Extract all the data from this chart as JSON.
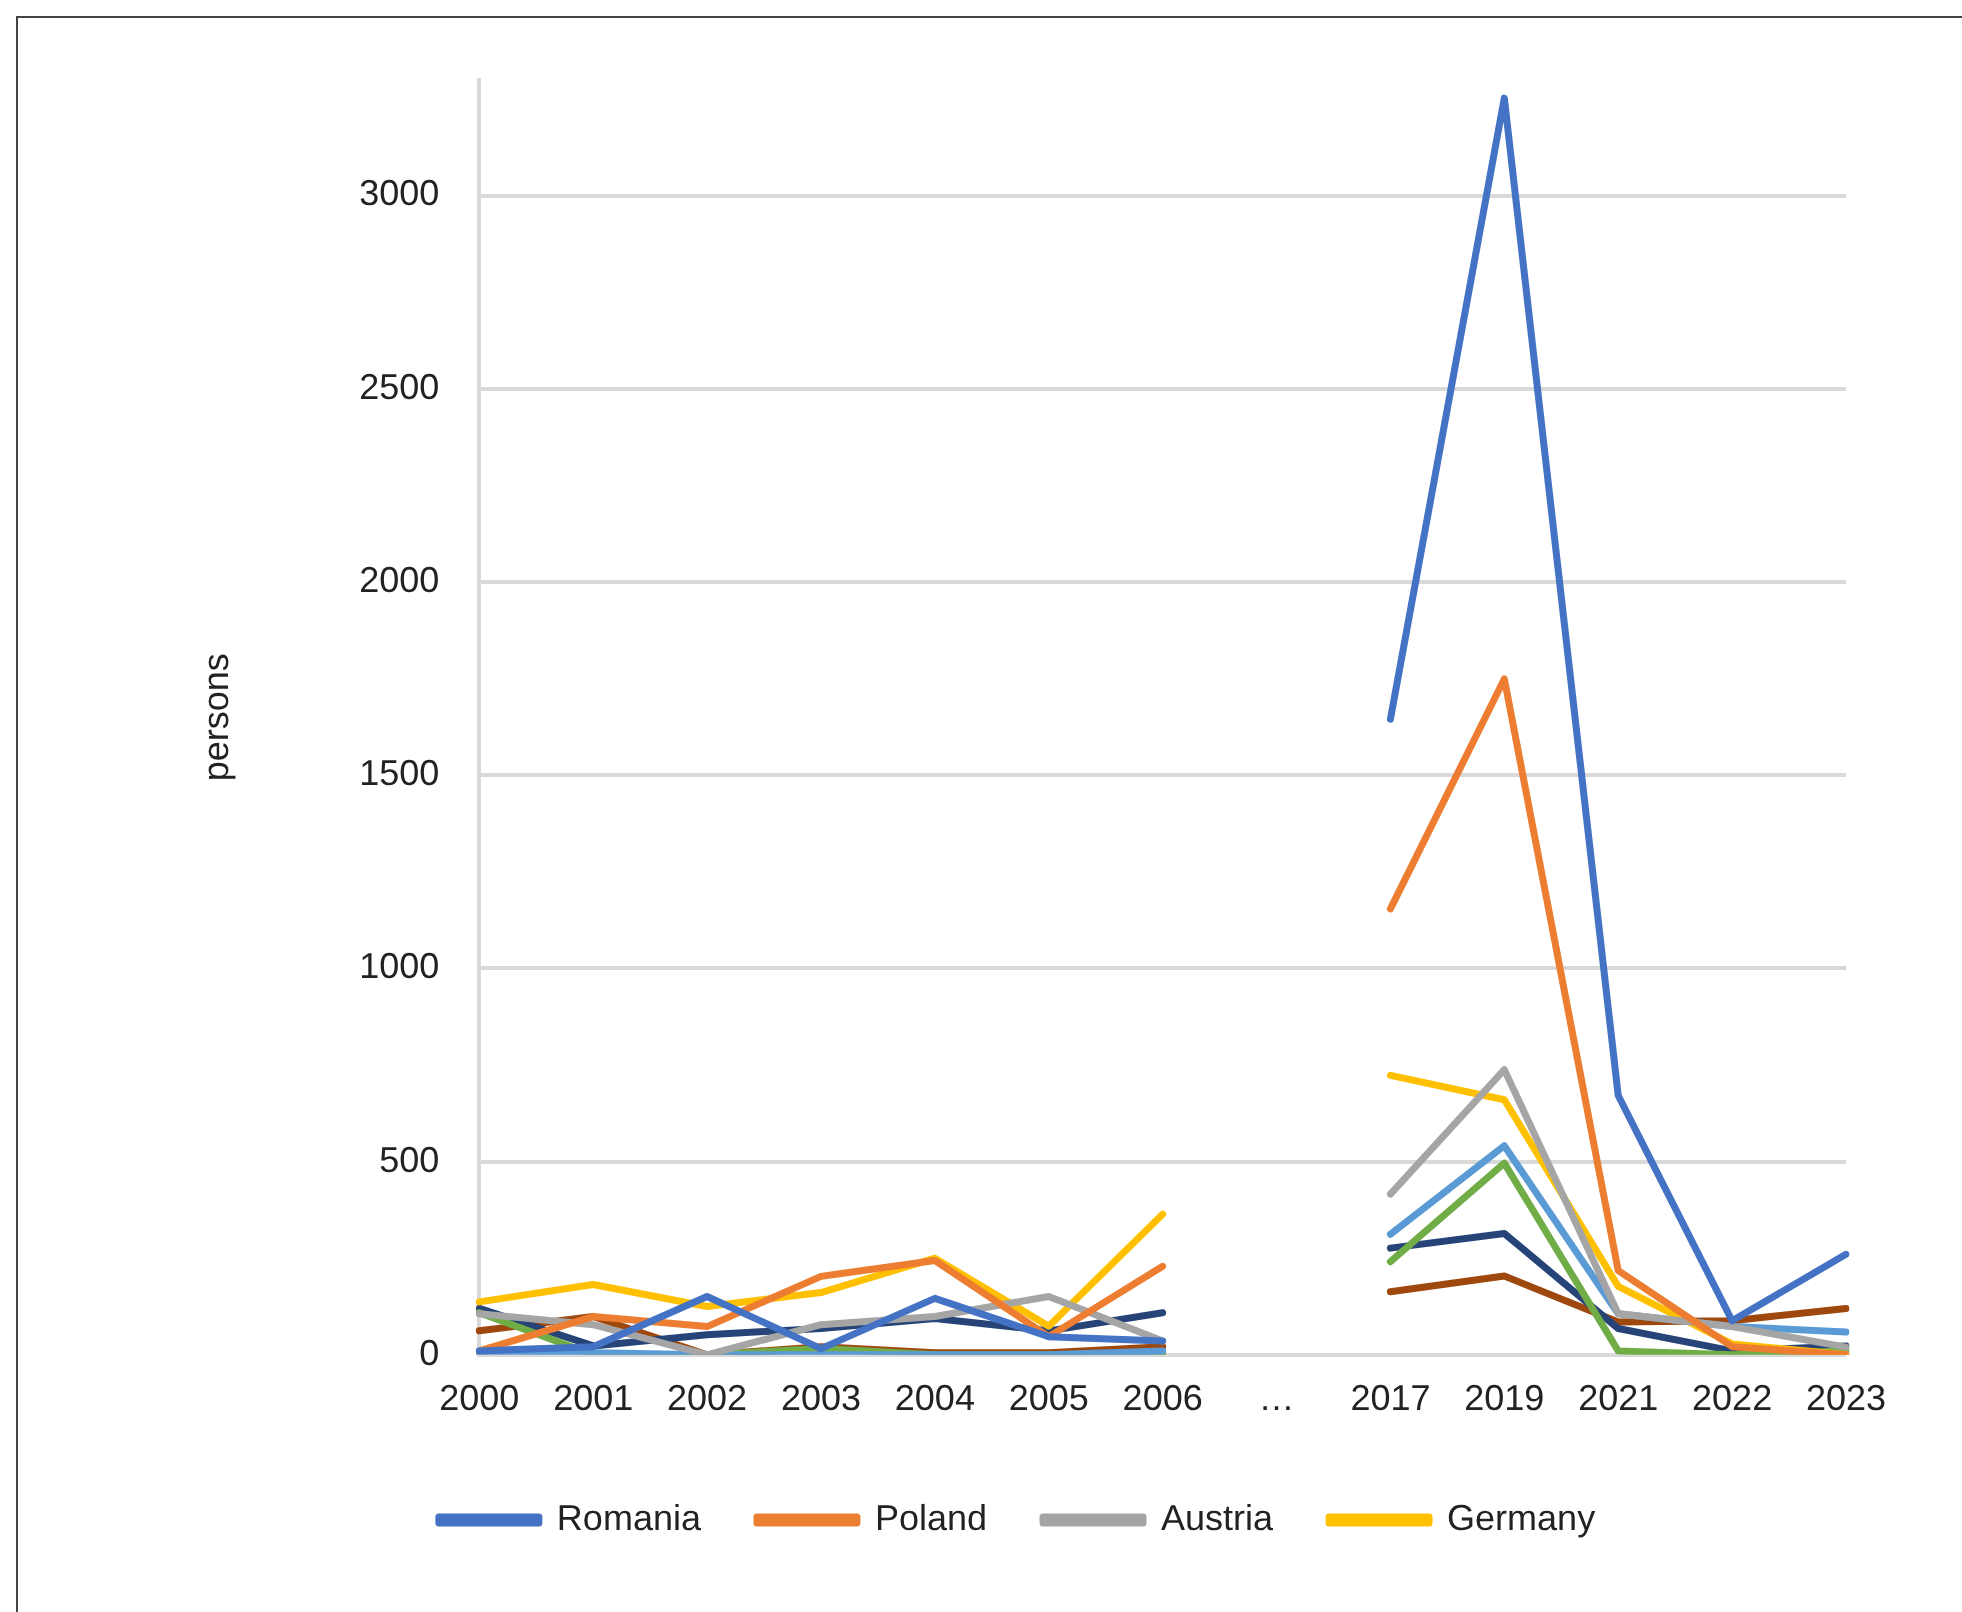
{
  "chart_data": {
    "type": "line",
    "ylabel": "persons",
    "categories": [
      "2000",
      "2001",
      "2002",
      "2003",
      "2004",
      "2005",
      "2006",
      "…",
      "2017",
      "2019",
      "2021",
      "2022",
      "2023"
    ],
    "series": [
      {
        "name": "Romania",
        "color": "#4472c4",
        "values": [
          10,
          21,
          151,
          16,
          146,
          47,
          36,
          null,
          1645,
          3252,
          671,
          88,
          260
        ]
      },
      {
        "name": "Poland",
        "color": "#ed7d31",
        "values": [
          10,
          99,
          73,
          203,
          244,
          47,
          229,
          null,
          1154,
          1749,
          218,
          21,
          0
        ]
      },
      {
        "name": "Austria",
        "color": "#a5a5a5",
        "values": [
          106,
          78,
          0,
          78,
          99,
          151,
          36,
          null,
          416,
          738,
          106,
          73,
          20
        ]
      },
      {
        "name": "Germany",
        "color": "#ffc000",
        "values": [
          137,
          182,
          125,
          161,
          250,
          74,
          364,
          null,
          723,
          660,
          177,
          28,
          0
        ]
      },
      {
        "color": "#5b9bd5",
        "values": [
          5,
          5,
          0,
          0,
          0,
          0,
          10,
          null,
          312,
          541,
          106,
          73,
          59
        ]
      },
      {
        "color": "#70ad47",
        "values": [
          109,
          0,
          0,
          16,
          0,
          0,
          5,
          null,
          241,
          496,
          10,
          0,
          10
        ]
      },
      {
        "color": "#264478",
        "values": [
          120,
          23,
          52,
          68,
          94,
          62,
          109,
          null,
          276,
          314,
          68,
          10,
          23
        ]
      },
      {
        "color": "#9e480e",
        "values": [
          62,
          99,
          0,
          21,
          5,
          5,
          21,
          null,
          163,
          204,
          85,
          88,
          120
        ]
      }
    ],
    "ylim": [
      0,
      3300
    ],
    "yticks": [
      0,
      500,
      1000,
      1500,
      2000,
      2500,
      3000
    ],
    "grid": "y",
    "legend": "bottom",
    "marker": "none",
    "line_style": "solid"
  }
}
